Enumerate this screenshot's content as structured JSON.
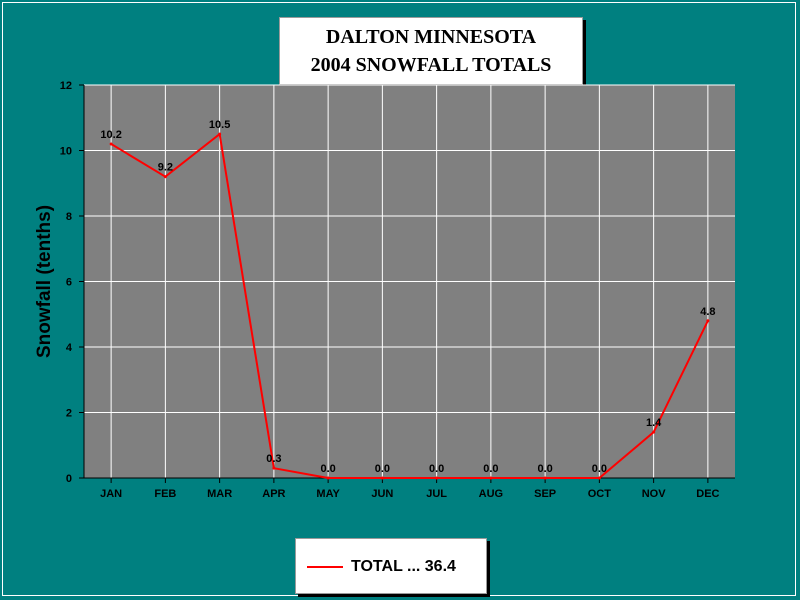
{
  "chart_data": {
    "type": "line",
    "title": [
      "DALTON MINNESOTA",
      "2004 SNOWFALL TOTALS"
    ],
    "ylabel": "Snowfall (tenths)",
    "xlabel": "",
    "categories": [
      "JAN",
      "FEB",
      "MAR",
      "APR",
      "MAY",
      "JUN",
      "JUL",
      "AUG",
      "SEP",
      "OCT",
      "NOV",
      "DEC"
    ],
    "series": [
      {
        "name": "TOTAL ... 36.4",
        "values": [
          10.2,
          9.2,
          10.5,
          0.3,
          0.0,
          0.0,
          0.0,
          0.0,
          0.0,
          0.0,
          1.4,
          4.8
        ],
        "labels": [
          "10.2",
          "9.2",
          "10.5",
          "0.3",
          "0.0",
          "0.0",
          "0.0",
          "0.0",
          "0.0",
          "0.0",
          "1.4",
          "4.8"
        ],
        "color": "#ff0000"
      }
    ],
    "ylim": [
      0,
      12
    ],
    "yticks": [
      0,
      2,
      4,
      6,
      8,
      10,
      12
    ],
    "grid": true,
    "legend": "bottom-center",
    "colors": {
      "background": "#008080",
      "plot_area": "#808080",
      "grid": "#ffffff",
      "line": "#ff0000"
    }
  }
}
